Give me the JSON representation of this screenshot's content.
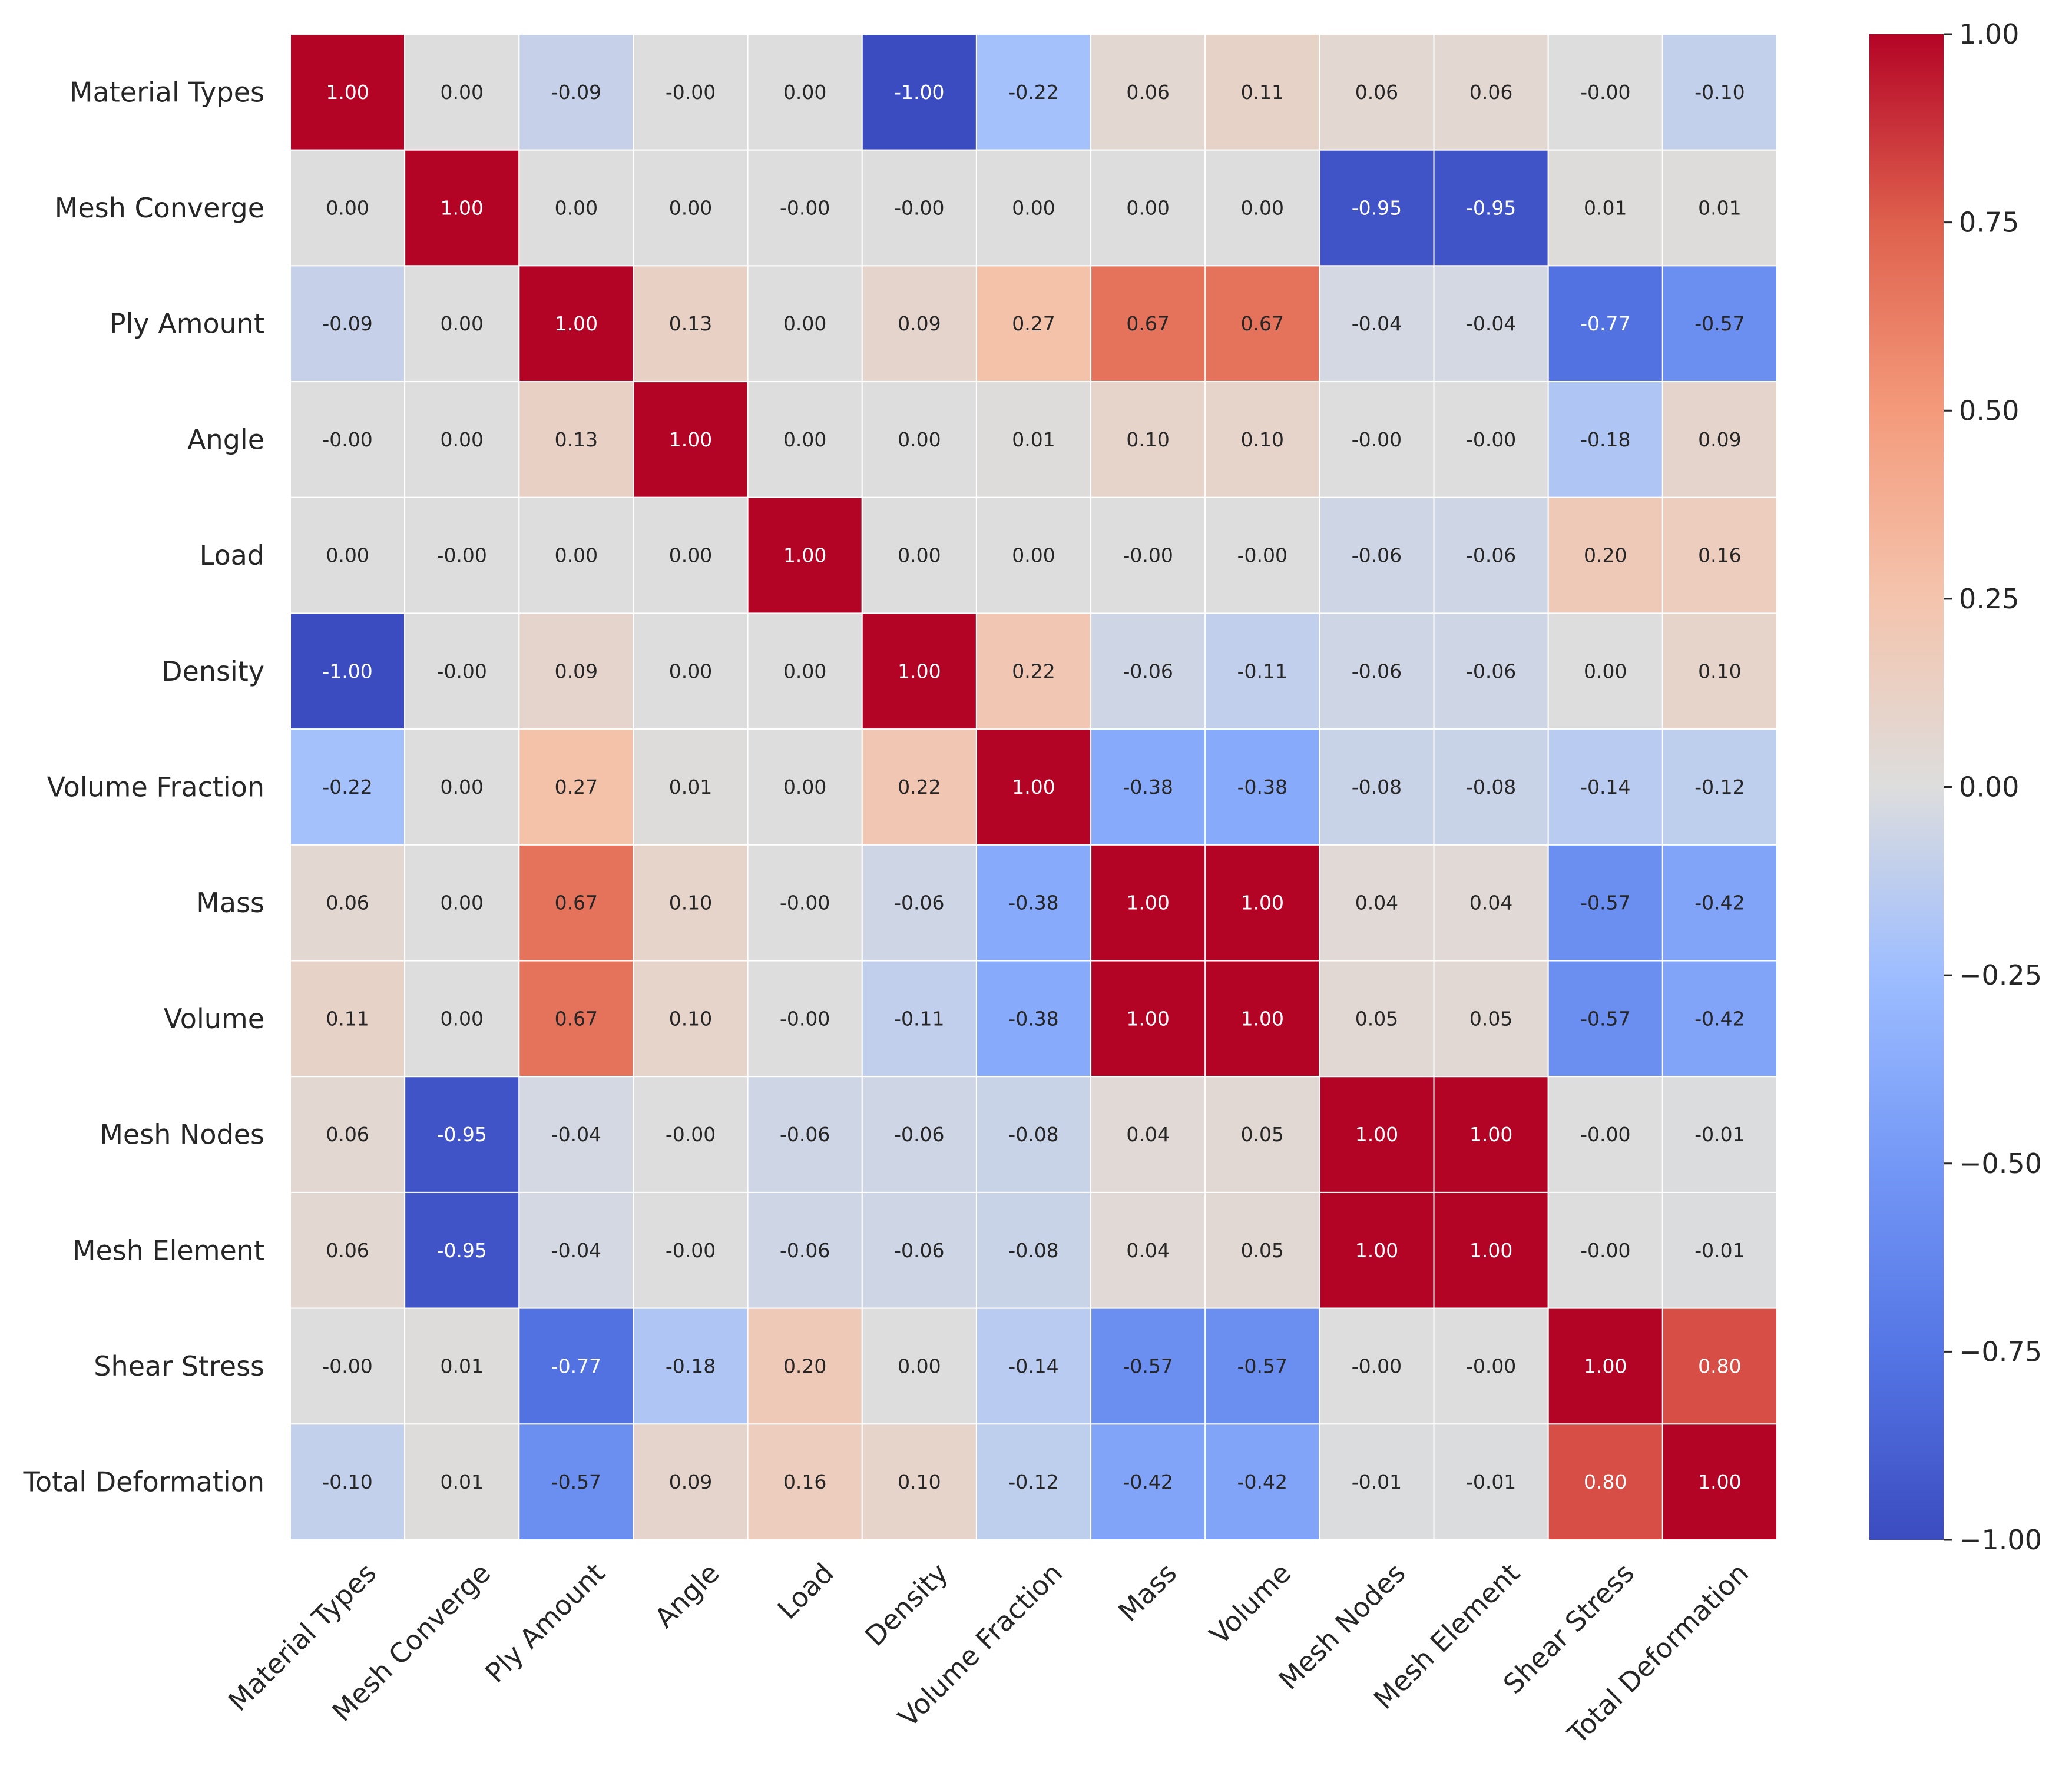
{
  "chart_data": {
    "type": "heatmap",
    "title": "",
    "xlabel": "",
    "ylabel": "",
    "colormap": "coolwarm",
    "vmin": -1.0,
    "vmax": 1.0,
    "row_labels": [
      "Material Types",
      "Mesh Converge",
      "Ply Amount",
      "Angle",
      "Load",
      "Density",
      "Volume Fraction",
      "Mass",
      "Volume",
      "Mesh Nodes",
      "Mesh Element",
      "Shear Stress",
      "Total Deformation"
    ],
    "col_labels": [
      "Material Types",
      "Mesh Converge",
      "Ply Amount",
      "Angle",
      "Load",
      "Density",
      "Volume Fraction",
      "Mass",
      "Volume",
      "Mesh Nodes",
      "Mesh Element",
      "Shear Stress",
      "Total Deformation"
    ],
    "value_labels": [
      [
        "1.00",
        "0.00",
        "-0.09",
        "-0.00",
        "0.00",
        "-1.00",
        "-0.22",
        "0.06",
        "0.11",
        "0.06",
        "0.06",
        "-0.00",
        "-0.10"
      ],
      [
        "0.00",
        "1.00",
        "0.00",
        "0.00",
        "-0.00",
        "-0.00",
        "0.00",
        "0.00",
        "0.00",
        "-0.95",
        "-0.95",
        "0.01",
        "0.01"
      ],
      [
        "-0.09",
        "0.00",
        "1.00",
        "0.13",
        "0.00",
        "0.09",
        "0.27",
        "0.67",
        "0.67",
        "-0.04",
        "-0.04",
        "-0.77",
        "-0.57"
      ],
      [
        "-0.00",
        "0.00",
        "0.13",
        "1.00",
        "0.00",
        "0.00",
        "0.01",
        "0.10",
        "0.10",
        "-0.00",
        "-0.00",
        "-0.18",
        "0.09"
      ],
      [
        "0.00",
        "-0.00",
        "0.00",
        "0.00",
        "1.00",
        "0.00",
        "0.00",
        "-0.00",
        "-0.00",
        "-0.06",
        "-0.06",
        "0.20",
        "0.16"
      ],
      [
        "-1.00",
        "-0.00",
        "0.09",
        "0.00",
        "0.00",
        "1.00",
        "0.22",
        "-0.06",
        "-0.11",
        "-0.06",
        "-0.06",
        "0.00",
        "0.10"
      ],
      [
        "-0.22",
        "0.00",
        "0.27",
        "0.01",
        "0.00",
        "0.22",
        "1.00",
        "-0.38",
        "-0.38",
        "-0.08",
        "-0.08",
        "-0.14",
        "-0.12"
      ],
      [
        "0.06",
        "0.00",
        "0.67",
        "0.10",
        "-0.00",
        "-0.06",
        "-0.38",
        "1.00",
        "1.00",
        "0.04",
        "0.04",
        "-0.57",
        "-0.42"
      ],
      [
        "0.11",
        "0.00",
        "0.67",
        "0.10",
        "-0.00",
        "-0.11",
        "-0.38",
        "1.00",
        "1.00",
        "0.05",
        "0.05",
        "-0.57",
        "-0.42"
      ],
      [
        "0.06",
        "-0.95",
        "-0.04",
        "-0.00",
        "-0.06",
        "-0.06",
        "-0.08",
        "0.04",
        "0.05",
        "1.00",
        "1.00",
        "-0.00",
        "-0.01"
      ],
      [
        "0.06",
        "-0.95",
        "-0.04",
        "-0.00",
        "-0.06",
        "-0.06",
        "-0.08",
        "0.04",
        "0.05",
        "1.00",
        "1.00",
        "-0.00",
        "-0.01"
      ],
      [
        "-0.00",
        "0.01",
        "-0.77",
        "-0.18",
        "0.20",
        "0.00",
        "-0.14",
        "-0.57",
        "-0.57",
        "-0.00",
        "-0.00",
        "1.00",
        "0.80"
      ],
      [
        "-0.10",
        "0.01",
        "-0.57",
        "0.09",
        "0.16",
        "0.10",
        "-0.12",
        "-0.42",
        "-0.42",
        "-0.01",
        "-0.01",
        "0.80",
        "1.00"
      ]
    ],
    "colorbar": {
      "tick_values": [
        1.0,
        0.75,
        0.5,
        0.25,
        0.0,
        -0.25,
        -0.5,
        -0.75,
        -1.0
      ],
      "tick_labels": [
        "1.00",
        "0.75",
        "0.50",
        "0.25",
        "0.00",
        "−0.25",
        "−0.50",
        "−0.75",
        "−1.00"
      ]
    }
  }
}
